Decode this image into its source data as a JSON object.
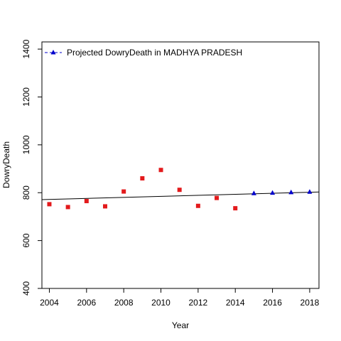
{
  "chart_data": {
    "type": "scatter",
    "xlabel": "Year",
    "ylabel": "DowryDeath",
    "xlim": [
      2003.6,
      2018.5
    ],
    "ylim": [
      400,
      1430
    ],
    "x_ticks": [
      2004,
      2006,
      2008,
      2010,
      2012,
      2014,
      2016,
      2018
    ],
    "y_ticks": [
      400,
      600,
      800,
      1000,
      1200,
      1400
    ],
    "legend": {
      "position": "top-left",
      "label": "Projected  DowryDeath  in  MADHYA PRADESH"
    },
    "series": [
      {
        "marker": "square",
        "color": "#e31a1c",
        "x": [
          2004,
          2005,
          2006,
          2007,
          2008,
          2009,
          2010,
          2011,
          2012,
          2013,
          2014
        ],
        "y": [
          752,
          740,
          765,
          743,
          805,
          860,
          895,
          812,
          745,
          778,
          735
        ]
      },
      {
        "name": "Projected  DowryDeath  in  MADHYA PRADESH",
        "marker": "triangle",
        "color": "#0000cc",
        "x": [
          2015,
          2016,
          2017,
          2018
        ],
        "y": [
          797,
          799,
          801,
          803
        ]
      }
    ],
    "trend_line": {
      "color": "#000000",
      "x": [
        2003.6,
        2018.5
      ],
      "y": [
        771,
        803
      ]
    }
  }
}
